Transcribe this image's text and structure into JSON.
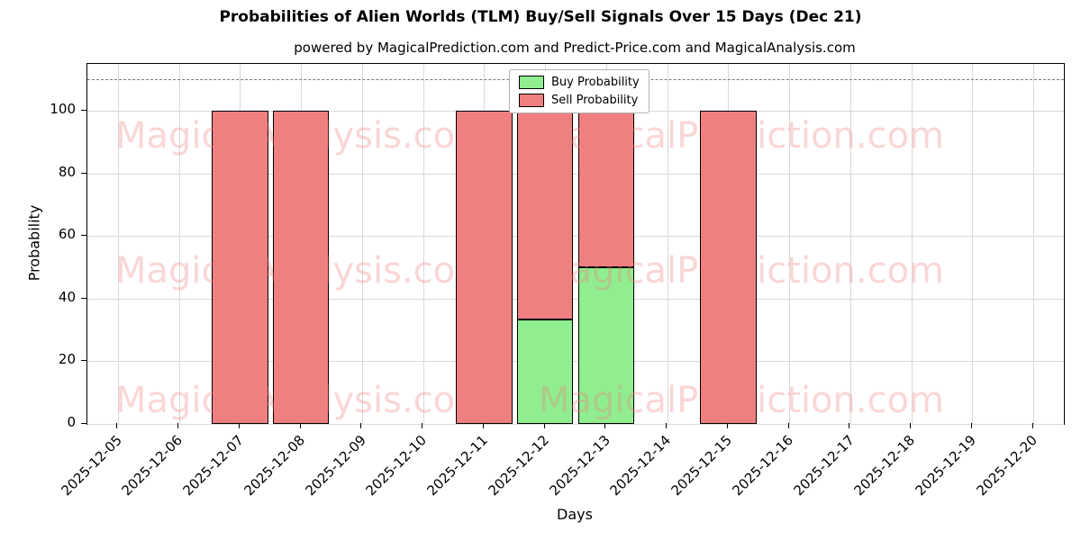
{
  "title": "Probabilities of Alien Worlds (TLM) Buy/Sell Signals Over 15 Days (Dec 21)",
  "subtitle": "powered by MagicalPrediction.com and Predict-Price.com and MagicalAnalysis.com",
  "watermarks": {
    "left": "MagicalAnalysis.com",
    "right": "MagicalPrediction.com"
  },
  "chart_data": {
    "type": "bar",
    "stacked": true,
    "title": "Probabilities of Alien Worlds (TLM) Buy/Sell Signals Over 15 Days (Dec 21)",
    "xlabel": "Days",
    "ylabel": "Probability",
    "ylim": [
      0,
      115
    ],
    "yticks": [
      0,
      20,
      40,
      60,
      80,
      100
    ],
    "grid": true,
    "dashed_line_y": 110,
    "legend_position": "upper center",
    "categories": [
      "2025-12-05",
      "2025-12-06",
      "2025-12-07",
      "2025-12-08",
      "2025-12-09",
      "2025-12-10",
      "2025-12-11",
      "2025-12-12",
      "2025-12-13",
      "2025-12-14",
      "2025-12-15",
      "2025-12-16",
      "2025-12-17",
      "2025-12-18",
      "2025-12-19",
      "2025-12-20"
    ],
    "series": [
      {
        "name": "Buy Probability",
        "color": "#90ee90",
        "values": [
          0,
          0,
          0,
          0,
          0,
          0,
          0,
          33.33,
          50,
          0,
          0,
          0,
          0,
          0,
          0,
          0
        ]
      },
      {
        "name": "Sell Probability",
        "color": "#f08080",
        "values": [
          0,
          0,
          100,
          100,
          0,
          0,
          100,
          66.67,
          50,
          0,
          100,
          0,
          0,
          0,
          0,
          0
        ]
      }
    ],
    "edge_color": "#000000",
    "gridline_color": "#d9d9d9",
    "watermark_color": "rgba(240,128,128,0.32)"
  }
}
